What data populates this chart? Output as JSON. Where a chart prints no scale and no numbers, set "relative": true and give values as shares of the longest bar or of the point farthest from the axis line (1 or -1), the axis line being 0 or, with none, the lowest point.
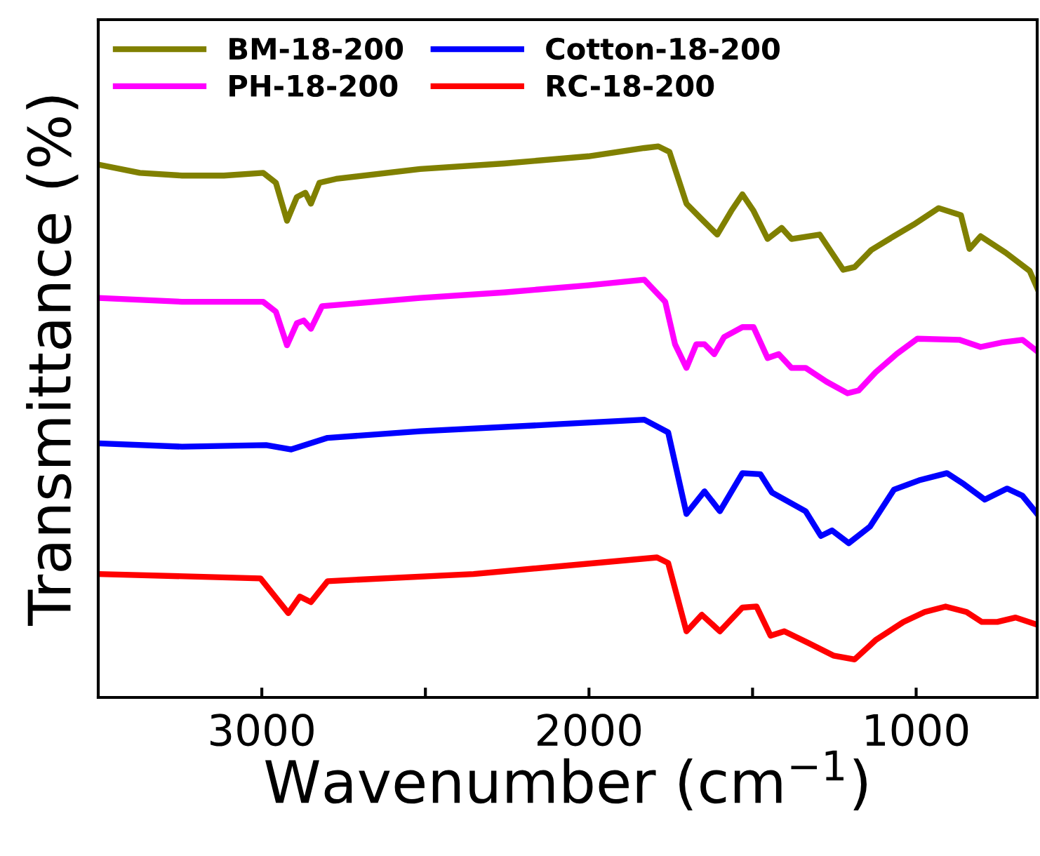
{
  "chart_data": {
    "type": "line",
    "relative": true,
    "xlabel": "Wavenumber (cm$^{−1}$)",
    "ylabel": "Transmittance (%)",
    "xlim": [
      3500,
      630
    ],
    "xticks": [
      3000,
      {
        "value": 2500,
        "label": null
      },
      2000,
      {
        "value": 1500,
        "label": null
      },
      1000
    ],
    "legend": "top left",
    "grid": false,
    "marker": "none",
    "line_style": "solid",
    "series": [
      {
        "name": "BM-18-200",
        "color": "#808000",
        "x": [
          3500,
          3373,
          3244,
          3116,
          2996,
          2957,
          2923,
          2893,
          2867,
          2850,
          2824,
          2773,
          2516,
          2259,
          2002,
          1831,
          1788,
          1754,
          1702,
          1659,
          1608,
          1565,
          1531,
          1497,
          1454,
          1411,
          1381,
          1295,
          1223,
          1188,
          1137,
          1068,
          1008,
          931,
          863,
          837,
          803,
          726,
          653,
          630
        ],
        "values": [
          0.967,
          0.952,
          0.947,
          0.947,
          0.952,
          0.934,
          0.865,
          0.908,
          0.916,
          0.896,
          0.934,
          0.941,
          0.959,
          0.969,
          0.982,
          0.997,
          1.0,
          0.99,
          0.896,
          0.87,
          0.84,
          0.883,
          0.913,
          0.883,
          0.832,
          0.852,
          0.832,
          0.84,
          0.776,
          0.781,
          0.812,
          0.837,
          0.858,
          0.888,
          0.875,
          0.814,
          0.837,
          0.807,
          0.774,
          0.743
        ]
      },
      {
        "name": "PH-18-200",
        "color": "#ff00ff",
        "x": [
          3500,
          3244,
          2996,
          2957,
          2923,
          2893,
          2872,
          2850,
          2816,
          2516,
          2259,
          2002,
          1831,
          1767,
          1737,
          1702,
          1672,
          1647,
          1617,
          1587,
          1531,
          1497,
          1454,
          1420,
          1381,
          1338,
          1274,
          1210,
          1176,
          1124,
          1060,
          996,
          868,
          803,
          739,
          675,
          630
        ],
        "values": [
          0.725,
          0.718,
          0.718,
          0.7,
          0.639,
          0.679,
          0.684,
          0.669,
          0.71,
          0.725,
          0.735,
          0.748,
          0.758,
          0.718,
          0.641,
          0.598,
          0.641,
          0.641,
          0.623,
          0.654,
          0.672,
          0.672,
          0.616,
          0.623,
          0.598,
          0.598,
          0.573,
          0.552,
          0.557,
          0.59,
          0.623,
          0.651,
          0.649,
          0.636,
          0.644,
          0.649,
          0.628
        ]
      },
      {
        "name": "Cotton-18-200",
        "color": "#0000ff",
        "x": [
          3500,
          3244,
          2987,
          2910,
          2799,
          2516,
          2088,
          1831,
          1758,
          1702,
          1647,
          1600,
          1531,
          1476,
          1441,
          1338,
          1291,
          1257,
          1206,
          1141,
          1068,
          991,
          906,
          854,
          790,
          722,
          675,
          630
        ],
        "values": [
          0.461,
          0.455,
          0.458,
          0.45,
          0.471,
          0.483,
          0.496,
          0.504,
          0.481,
          0.333,
          0.374,
          0.338,
          0.407,
          0.405,
          0.372,
          0.338,
          0.293,
          0.303,
          0.28,
          0.31,
          0.377,
          0.394,
          0.407,
          0.387,
          0.359,
          0.379,
          0.366,
          0.333
        ]
      },
      {
        "name": "RC-18-200",
        "color": "#ff0000",
        "x": [
          3500,
          3004,
          2919,
          2884,
          2850,
          2799,
          2353,
          1792,
          1758,
          1702,
          1655,
          1600,
          1531,
          1488,
          1445,
          1403,
          1330,
          1253,
          1188,
          1124,
          1039,
          974,
          910,
          846,
          799,
          752,
          696,
          630
        ],
        "values": [
          0.224,
          0.216,
          0.153,
          0.183,
          0.173,
          0.211,
          0.224,
          0.254,
          0.244,
          0.12,
          0.15,
          0.12,
          0.163,
          0.165,
          0.112,
          0.12,
          0.099,
          0.076,
          0.069,
          0.104,
          0.137,
          0.155,
          0.165,
          0.155,
          0.137,
          0.137,
          0.145,
          0.132
        ]
      }
    ]
  }
}
